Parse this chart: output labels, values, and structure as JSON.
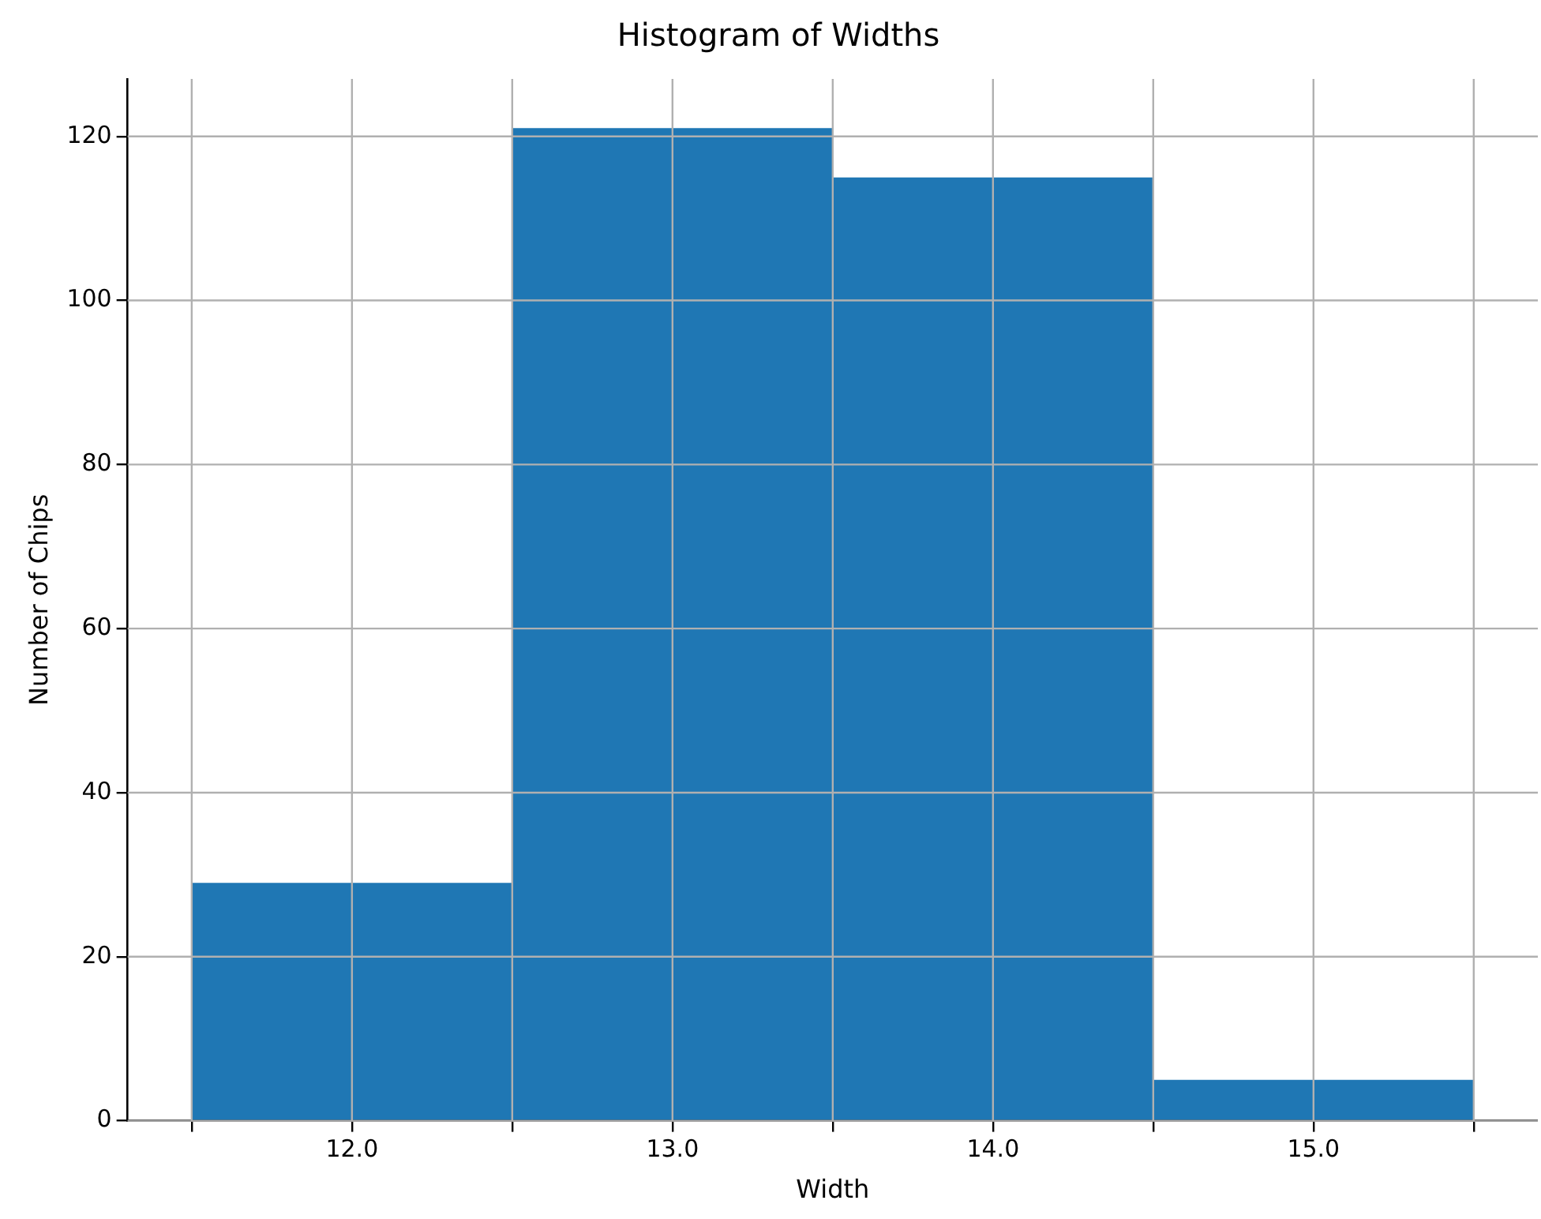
{
  "chart_data": {
    "type": "histogram",
    "title": "Histogram of Widths",
    "xlabel": "Width",
    "ylabel": "Number of Chips",
    "bins": [
      11.5,
      12.5,
      13.5,
      14.5,
      15.5
    ],
    "values": [
      29,
      121,
      115,
      5
    ],
    "color": "#1f77b4",
    "xlim": [
      11.3,
      15.7
    ],
    "xticks": [
      {
        "value": 11.5,
        "label": null
      },
      {
        "value": 12,
        "label": "12.0"
      },
      {
        "value": 12.5,
        "label": null
      },
      {
        "value": 13,
        "label": "13.0"
      },
      {
        "value": 13.5,
        "label": null
      },
      {
        "value": 14,
        "label": "14.0"
      },
      {
        "value": 14.5,
        "label": null
      },
      {
        "value": 15,
        "label": "15.0"
      },
      {
        "value": 15.5,
        "label": null
      }
    ],
    "ylim": [
      0,
      127
    ],
    "yticks": [
      0,
      20,
      40,
      60,
      80,
      100,
      120
    ],
    "grid": true
  }
}
